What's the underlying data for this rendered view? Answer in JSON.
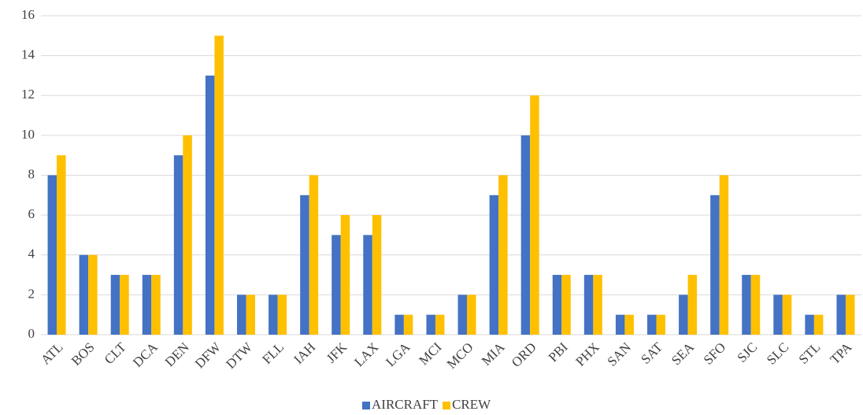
{
  "chart_data": {
    "type": "bar",
    "categories": [
      "ATL",
      "BOS",
      "CLT",
      "DCA",
      "DEN",
      "DFW",
      "DTW",
      "FLL",
      "IAH",
      "JFK",
      "LAX",
      "LGA",
      "MCI",
      "MCO",
      "MIA",
      "ORD",
      "PBI",
      "PHX",
      "SAN",
      "SAT",
      "SEA",
      "SFO",
      "SJC",
      "SLC",
      "STL",
      "TPA"
    ],
    "series": [
      {
        "name": "AIRCRAFT",
        "color": "#4472c4",
        "values": [
          8,
          4,
          3,
          3,
          9,
          13,
          2,
          2,
          7,
          5,
          5,
          1,
          1,
          2,
          7,
          10,
          3,
          3,
          1,
          1,
          2,
          7,
          3,
          2,
          1,
          2
        ]
      },
      {
        "name": "CREW",
        "color": "#ffc000",
        "values": [
          9,
          4,
          3,
          3,
          10,
          15,
          2,
          2,
          8,
          6,
          6,
          1,
          1,
          2,
          8,
          12,
          3,
          3,
          1,
          1,
          3,
          8,
          3,
          2,
          1,
          2
        ]
      }
    ],
    "ylim": [
      0,
      16
    ],
    "yticks": [
      0,
      2,
      4,
      6,
      8,
      10,
      12,
      14,
      16
    ],
    "grid": true,
    "legend": "bottom"
  }
}
